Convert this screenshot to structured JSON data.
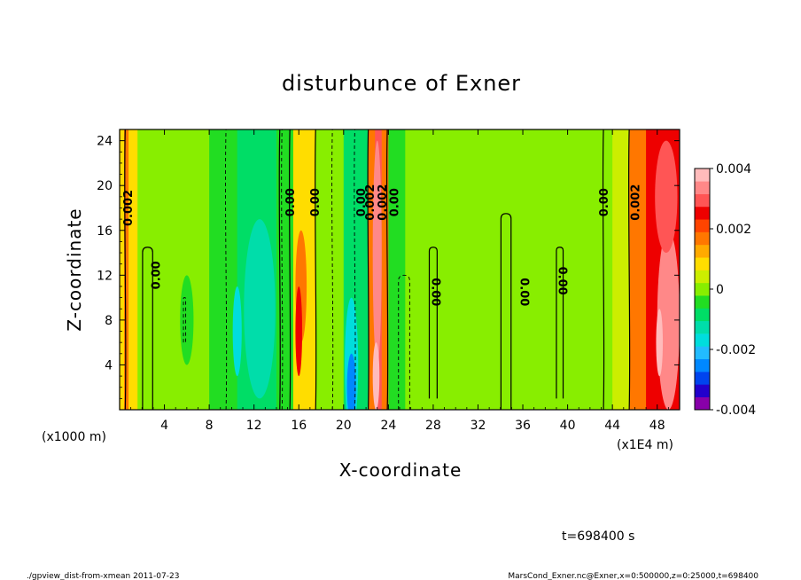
{
  "chart_data": {
    "type": "heatmap",
    "title": "disturbunce of Exner",
    "xlabel": "X-coordinate",
    "ylabel": "Z-coordinate",
    "x_unit": "(x1000 m)",
    "x_scale_note": "(x1E4 m)",
    "x_ticks": [
      "4",
      "8",
      "12",
      "16",
      "20",
      "24",
      "28",
      "32",
      "36",
      "40",
      "44",
      "48"
    ],
    "y_ticks": [
      "4",
      "8",
      "12",
      "16",
      "20",
      "24"
    ],
    "xlim": [
      0,
      500
    ],
    "ylim": [
      0,
      25
    ],
    "colorbar": {
      "range": [
        -0.004,
        0.004
      ],
      "tick_labels": [
        "0.004",
        "0.002",
        "0",
        "-0.002",
        "-0.004"
      ],
      "colors": [
        "#8800aa",
        "#2200cc",
        "#0044ee",
        "#0088ff",
        "#22bbff",
        "#00dddd",
        "#00ddaa",
        "#00dd66",
        "#22dd22",
        "#88ee00",
        "#ccee00",
        "#ffdd00",
        "#ffaa00",
        "#ff7700",
        "#ff4400",
        "#ee0000",
        "#ff5555",
        "#ff8888",
        "#ffbbbb"
      ]
    },
    "contour_labels": [
      {
        "text": "0.002",
        "x": 7,
        "z": 18,
        "rotate": -90
      },
      {
        "text": "0.00",
        "x": 32,
        "z": 12,
        "rotate": -90
      },
      {
        "text": "0.00",
        "x": 152,
        "z": 18.5,
        "rotate": -90
      },
      {
        "text": "0.00",
        "x": 174,
        "z": 18.5,
        "rotate": -90
      },
      {
        "text": "0.00",
        "x": 215,
        "z": 18.5,
        "rotate": -90
      },
      {
        "text": "0.002",
        "x": 223,
        "z": 18.5,
        "rotate": -90
      },
      {
        "text": "0.002",
        "x": 234,
        "z": 18.5,
        "rotate": -90
      },
      {
        "text": "0.00",
        "x": 245,
        "z": 18.5,
        "rotate": -90
      },
      {
        "text": "0.00",
        "x": 283,
        "z": 10.5,
        "rotate": 90
      },
      {
        "text": "0.00",
        "x": 362,
        "z": 10.5,
        "rotate": 90
      },
      {
        "text": "0.00",
        "x": 396,
        "z": 11.5,
        "rotate": 90
      },
      {
        "text": "0.00",
        "x": 432,
        "z": 18.5,
        "rotate": -90
      },
      {
        "text": "0.002",
        "x": 460,
        "z": 18.5,
        "rotate": -90
      }
    ],
    "columns": [
      {
        "x0": 0,
        "x1": 4,
        "v": 0.001
      },
      {
        "x0": 4,
        "x1": 8,
        "v": 0.0016
      },
      {
        "x0": 8,
        "x1": 16,
        "v": 0.0007
      },
      {
        "x0": 16,
        "x1": 40,
        "v": 0.0002
      },
      {
        "x0": 40,
        "x1": 80,
        "v": 0.0
      },
      {
        "x0": 80,
        "x1": 105,
        "v": -0.0003
      },
      {
        "x0": 105,
        "x1": 140,
        "v": -0.0008
      },
      {
        "x0": 140,
        "x1": 155,
        "v": -0.0004
      },
      {
        "x0": 155,
        "x1": 175,
        "v": 0.0009
      },
      {
        "x0": 175,
        "x1": 200,
        "v": -0.0002
      },
      {
        "x0": 200,
        "x1": 212,
        "v": -0.001
      },
      {
        "x0": 212,
        "x1": 222,
        "v": -0.0007
      },
      {
        "x0": 222,
        "x1": 228,
        "v": 0.0015
      },
      {
        "x0": 228,
        "x1": 234,
        "v": 0.003
      },
      {
        "x0": 234,
        "x1": 240,
        "v": 0.0016
      },
      {
        "x0": 240,
        "x1": 255,
        "v": -0.0003
      },
      {
        "x0": 255,
        "x1": 300,
        "v": 0.0
      },
      {
        "x0": 300,
        "x1": 330,
        "v": -0.0002
      },
      {
        "x0": 330,
        "x1": 440,
        "v": 0.0001
      },
      {
        "x0": 440,
        "x1": 455,
        "v": 0.0006
      },
      {
        "x0": 455,
        "x1": 470,
        "v": 0.0016
      },
      {
        "x0": 470,
        "x1": 500,
        "v": 0.0024
      }
    ],
    "blobs": [
      {
        "x": 60,
        "z": 8,
        "rx": 6,
        "rz": 4,
        "v": -0.0006
      },
      {
        "x": 125,
        "z": 9,
        "rx": 14,
        "rz": 8,
        "v": -0.0013
      },
      {
        "x": 105,
        "z": 7,
        "rx": 4,
        "rz": 4,
        "v": -0.0015
      },
      {
        "x": 162,
        "z": 11,
        "rx": 5,
        "rz": 5,
        "v": 0.0016
      },
      {
        "x": 160,
        "z": 7,
        "rx": 3,
        "rz": 4,
        "v": 0.0024
      },
      {
        "x": 207,
        "z": 4,
        "rx": 6,
        "rz": 6,
        "v": -0.0018
      },
      {
        "x": 207,
        "z": 2,
        "rx": 4,
        "rz": 3,
        "v": -0.0026
      },
      {
        "x": 230,
        "z": 14,
        "rx": 4,
        "rz": 10,
        "v": 0.0034
      },
      {
        "x": 229,
        "z": 3,
        "rx": 3,
        "rz": 3,
        "v": 0.004
      },
      {
        "x": 490,
        "z": 8,
        "rx": 10,
        "rz": 8,
        "v": 0.0032
      },
      {
        "x": 482,
        "z": 6,
        "rx": 3,
        "rz": 3,
        "v": 0.0037
      },
      {
        "x": 488,
        "z": 19,
        "rx": 10,
        "rz": 5,
        "v": 0.003
      }
    ],
    "solid_contours": [
      {
        "x": 25,
        "z0": 0,
        "z1": 14.5,
        "w": 9
      },
      {
        "x": 5,
        "z0": 0,
        "z1": 25,
        "w": 0
      },
      {
        "x": 143,
        "z0": 0,
        "z1": 25,
        "w": 0
      },
      {
        "x": 152,
        "z0": 0,
        "z1": 25,
        "w": 0
      },
      {
        "x": 175,
        "z0": 0,
        "z1": 25,
        "w": 0
      },
      {
        "x": 222,
        "z0": 0,
        "z1": 25,
        "w": 0
      },
      {
        "x": 239,
        "z0": 0,
        "z1": 25,
        "w": 0
      },
      {
        "x": 280,
        "z0": 1,
        "z1": 14.5,
        "w": 7
      },
      {
        "x": 345,
        "z0": 0,
        "z1": 17.5,
        "w": 9
      },
      {
        "x": 393,
        "z0": 1,
        "z1": 14.5,
        "w": 6
      },
      {
        "x": 432,
        "z0": 0,
        "z1": 25,
        "w": 0
      },
      {
        "x": 455,
        "z0": 0,
        "z1": 25,
        "w": 0
      }
    ],
    "dashed_contours": [
      {
        "x": 95,
        "z0": 0,
        "z1": 25,
        "w": 0
      },
      {
        "x": 145,
        "z0": 0,
        "z1": 25,
        "w": 0
      },
      {
        "x": 190,
        "z0": 0,
        "z1": 25,
        "w": 0
      },
      {
        "x": 210,
        "z0": 0,
        "z1": 25,
        "w": 0
      },
      {
        "x": 254,
        "z0": 0,
        "z1": 12,
        "w": 10
      },
      {
        "x": 58,
        "z0": 6,
        "z1": 10,
        "w": 2
      }
    ]
  },
  "time_label": "t=698400 s",
  "footer_left": "./gpview_dist-from-xmean  2011-07-23",
  "footer_right": "MarsCond_Exner.nc@Exner,x=0:500000,z=0:25000,t=698400"
}
